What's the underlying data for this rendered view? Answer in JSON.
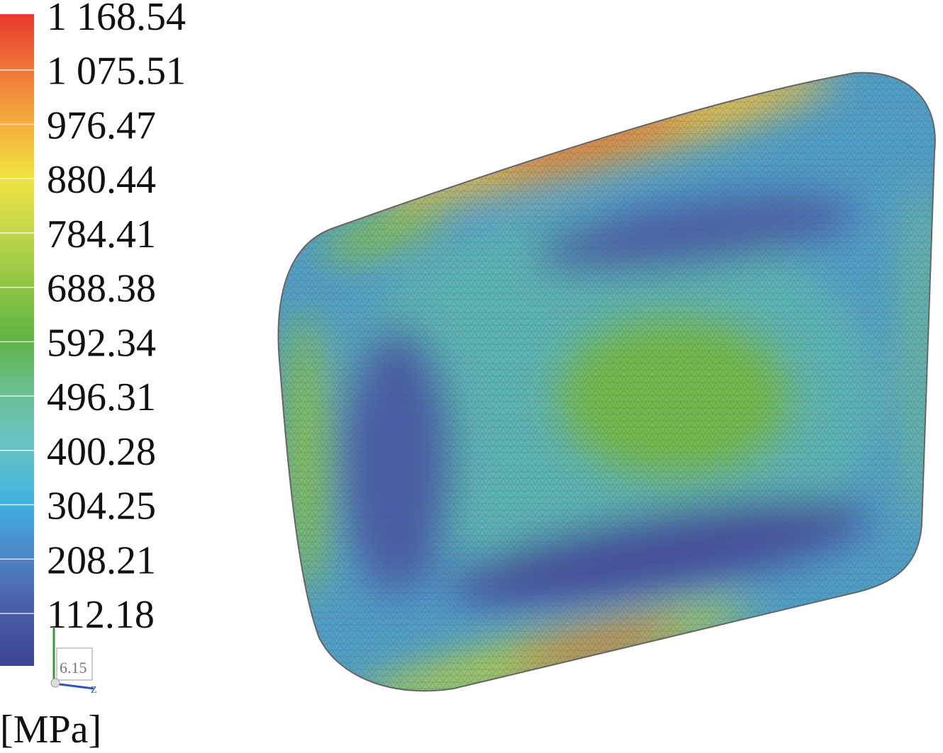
{
  "legend": {
    "labels": [
      "1 168.54",
      "1 075.51",
      "976.47",
      "880.44",
      "784.41",
      "688.38",
      "592.34",
      "496.31",
      "400.28",
      "304.25",
      "208.21",
      "112.18"
    ],
    "unit": "[MPa]"
  },
  "triad": {
    "label": "6.15",
    "axis": "Z"
  }
}
